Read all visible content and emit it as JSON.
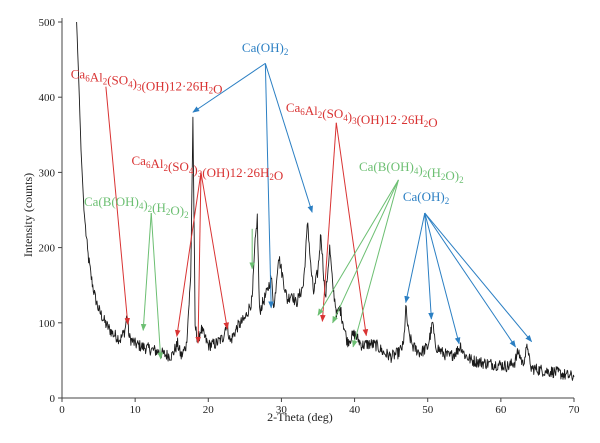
{
  "chart_data": {
    "type": "line",
    "title": "",
    "xlabel": "2-Theta (deg)",
    "ylabel": "Intensity (counts)",
    "xlim": [
      0,
      70
    ],
    "ylim": [
      0,
      500
    ],
    "xticks": [
      0,
      10,
      20,
      30,
      40,
      50,
      60,
      70
    ],
    "yticks": [
      0,
      100,
      200,
      300,
      400,
      500
    ],
    "grid": false,
    "legend": "none",
    "series": [
      {
        "color": "#1a1a1a",
        "x": [
          2.0,
          2.3,
          2.6,
          3.0,
          3.5,
          4.0,
          4.5,
          5.0,
          6.0,
          7.0,
          8.0,
          8.6,
          8.9,
          9.2,
          10.0,
          11.0,
          12.0,
          13.0,
          14.0,
          15.0,
          15.8,
          16.3,
          17.0,
          17.6,
          17.9,
          18.2,
          18.6,
          19.0,
          20.0,
          21.0,
          22.0,
          22.5,
          23.0,
          24.0,
          25.0,
          26.0,
          26.4,
          26.7,
          27.0,
          28.0,
          28.6,
          29.0,
          29.6,
          30.2,
          30.8,
          31.4,
          32.0,
          33.0,
          33.6,
          34.0,
          34.4,
          35.0,
          35.4,
          36.0,
          36.6,
          37.0,
          37.6,
          38.0,
          39.0,
          40.0,
          41.0,
          42.0,
          43.0,
          44.0,
          45.0,
          46.0,
          46.7,
          47.0,
          47.4,
          48.0,
          49.0,
          50.0,
          50.7,
          51.0,
          52.0,
          53.0,
          54.0,
          54.5,
          55.0,
          56.0,
          57.0,
          58.0,
          59.0,
          60.0,
          61.0,
          61.9,
          62.4,
          63.0,
          63.7,
          64.0,
          65.0,
          66.0,
          67.0,
          68.0,
          69.0,
          70.0
        ],
        "y": [
          500,
          420,
          330,
          250,
          195,
          160,
          135,
          118,
          98,
          85,
          78,
          90,
          112,
          80,
          72,
          68,
          65,
          62,
          58,
          56,
          72,
          55,
          70,
          160,
          372,
          95,
          75,
          92,
          70,
          72,
          80,
          100,
          75,
          95,
          105,
          130,
          205,
          240,
          115,
          140,
          160,
          120,
          190,
          160,
          130,
          140,
          125,
          150,
          235,
          175,
          140,
          170,
          220,
          130,
          200,
          150,
          110,
          120,
          75,
          85,
          70,
          72,
          70,
          60,
          55,
          60,
          70,
          120,
          85,
          68,
          60,
          68,
          100,
          70,
          60,
          55,
          62,
          70,
          58,
          50,
          48,
          46,
          45,
          44,
          42,
          48,
          62,
          45,
          70,
          40,
          38,
          36,
          35,
          33,
          30,
          28
        ]
      }
    ],
    "annotations": [
      {
        "label": "Ca6Al2(SO4)3(OH)12·26H2O",
        "parts": [
          [
            "Ca",
            0
          ],
          [
            "6",
            -1
          ],
          [
            "Al",
            0
          ],
          [
            "2",
            -1
          ],
          [
            "(SO",
            0
          ],
          [
            "4",
            -1
          ],
          [
            ")",
            0
          ],
          [
            "3",
            -1
          ],
          [
            "(OH)12·26H",
            0
          ],
          [
            "2",
            -1
          ],
          [
            "O",
            0
          ]
        ],
        "color": "#d93333",
        "text_at": [
          1.2,
          425
        ],
        "anchor_from": [
          6.0,
          414
        ],
        "targets": [
          [
            9.0,
            98
          ]
        ]
      },
      {
        "label": "Ca(OH)2",
        "parts": [
          [
            "Ca(OH)",
            0
          ],
          [
            "2",
            -1
          ]
        ],
        "color": "#2b7fc3",
        "text_at": [
          24.6,
          460
        ],
        "anchor_from": [
          27.8,
          445
        ],
        "targets": [
          [
            17.9,
            380
          ],
          [
            28.6,
            120
          ],
          [
            34.2,
            247
          ]
        ]
      },
      {
        "label": "Ca6Al2(SO4)3(OH)12·26H2O",
        "parts": [
          [
            "Ca",
            0
          ],
          [
            "6",
            -1
          ],
          [
            "Al",
            0
          ],
          [
            "2",
            -1
          ],
          [
            "(SO",
            0
          ],
          [
            "4",
            -1
          ],
          [
            ")",
            0
          ],
          [
            "3",
            -1
          ],
          [
            "(OH)12·26H",
            0
          ],
          [
            "2",
            -1
          ],
          [
            "O",
            0
          ]
        ],
        "color": "#d93333",
        "text_at": [
          30.6,
          380
        ],
        "anchor_from": [
          37.5,
          366
        ],
        "targets": [
          [
            35.6,
            102
          ],
          [
            41.6,
            83
          ]
        ]
      },
      {
        "label": "Ca6Al2(SO4)3(OH)12·26H2O",
        "parts": [
          [
            "Ca",
            0
          ],
          [
            "6",
            -1
          ],
          [
            "Al",
            0
          ],
          [
            "2",
            -1
          ],
          [
            "(SO",
            0
          ],
          [
            "4",
            -1
          ],
          [
            ")",
            0
          ],
          [
            "3",
            -1
          ],
          [
            "(OH)12·26H",
            0
          ],
          [
            "2",
            -1
          ],
          [
            "O",
            0
          ]
        ],
        "color": "#d93333",
        "text_at": [
          9.5,
          310
        ],
        "anchor_from": [
          19.0,
          300
        ],
        "targets": [
          [
            15.7,
            82
          ],
          [
            18.6,
            73
          ],
          [
            22.6,
            92
          ]
        ]
      },
      {
        "label": "Ca(B(OH)4)2(H2O)2",
        "parts": [
          [
            "Ca(B(OH)",
            0
          ],
          [
            "4",
            -1
          ],
          [
            ")",
            0
          ],
          [
            "2",
            -1
          ],
          [
            "(H",
            0
          ],
          [
            "2",
            -1
          ],
          [
            "O)",
            0
          ],
          [
            "2",
            -1
          ]
        ],
        "color": "#6cbf72",
        "text_at": [
          40.6,
          302
        ],
        "anchor_from": [
          46.0,
          290
        ],
        "targets": [
          [
            35.0,
            110
          ],
          [
            37.0,
            100
          ],
          [
            39.8,
            68
          ]
        ]
      },
      {
        "label": "Ca(B(OH)4)2(H2O)2",
        "parts": [
          [
            "Ca(B(OH)",
            0
          ],
          [
            "4",
            -1
          ],
          [
            ")",
            0
          ],
          [
            "2",
            -1
          ],
          [
            "(H",
            0
          ],
          [
            "2",
            -1
          ],
          [
            "O)",
            0
          ],
          [
            "2",
            -1
          ]
        ],
        "color": "#6cbf72",
        "text_at": [
          3.0,
          255
        ],
        "anchor_from": [
          12.2,
          246
        ],
        "targets": [
          [
            11.1,
            90
          ],
          [
            13.5,
            52
          ]
        ]
      },
      {
        "label": "Ca(OH)2",
        "parts": [
          [
            "Ca(OH)",
            0
          ],
          [
            "2",
            -1
          ]
        ],
        "color": "#2b7fc3",
        "text_at": [
          46.6,
          262
        ],
        "anchor_from": [
          49.6,
          246
        ],
        "targets": [
          [
            47.0,
            127
          ],
          [
            50.5,
            105
          ],
          [
            54.3,
            72
          ],
          [
            62.0,
            68
          ],
          [
            64.2,
            75
          ]
        ]
      },
      {
        "label": "",
        "parts": [],
        "color": "#6cbf72",
        "text_at": [
          26.0,
          225
        ],
        "anchor_from": [
          26.0,
          225
        ],
        "targets": [
          [
            26.0,
            172
          ]
        ]
      }
    ]
  }
}
